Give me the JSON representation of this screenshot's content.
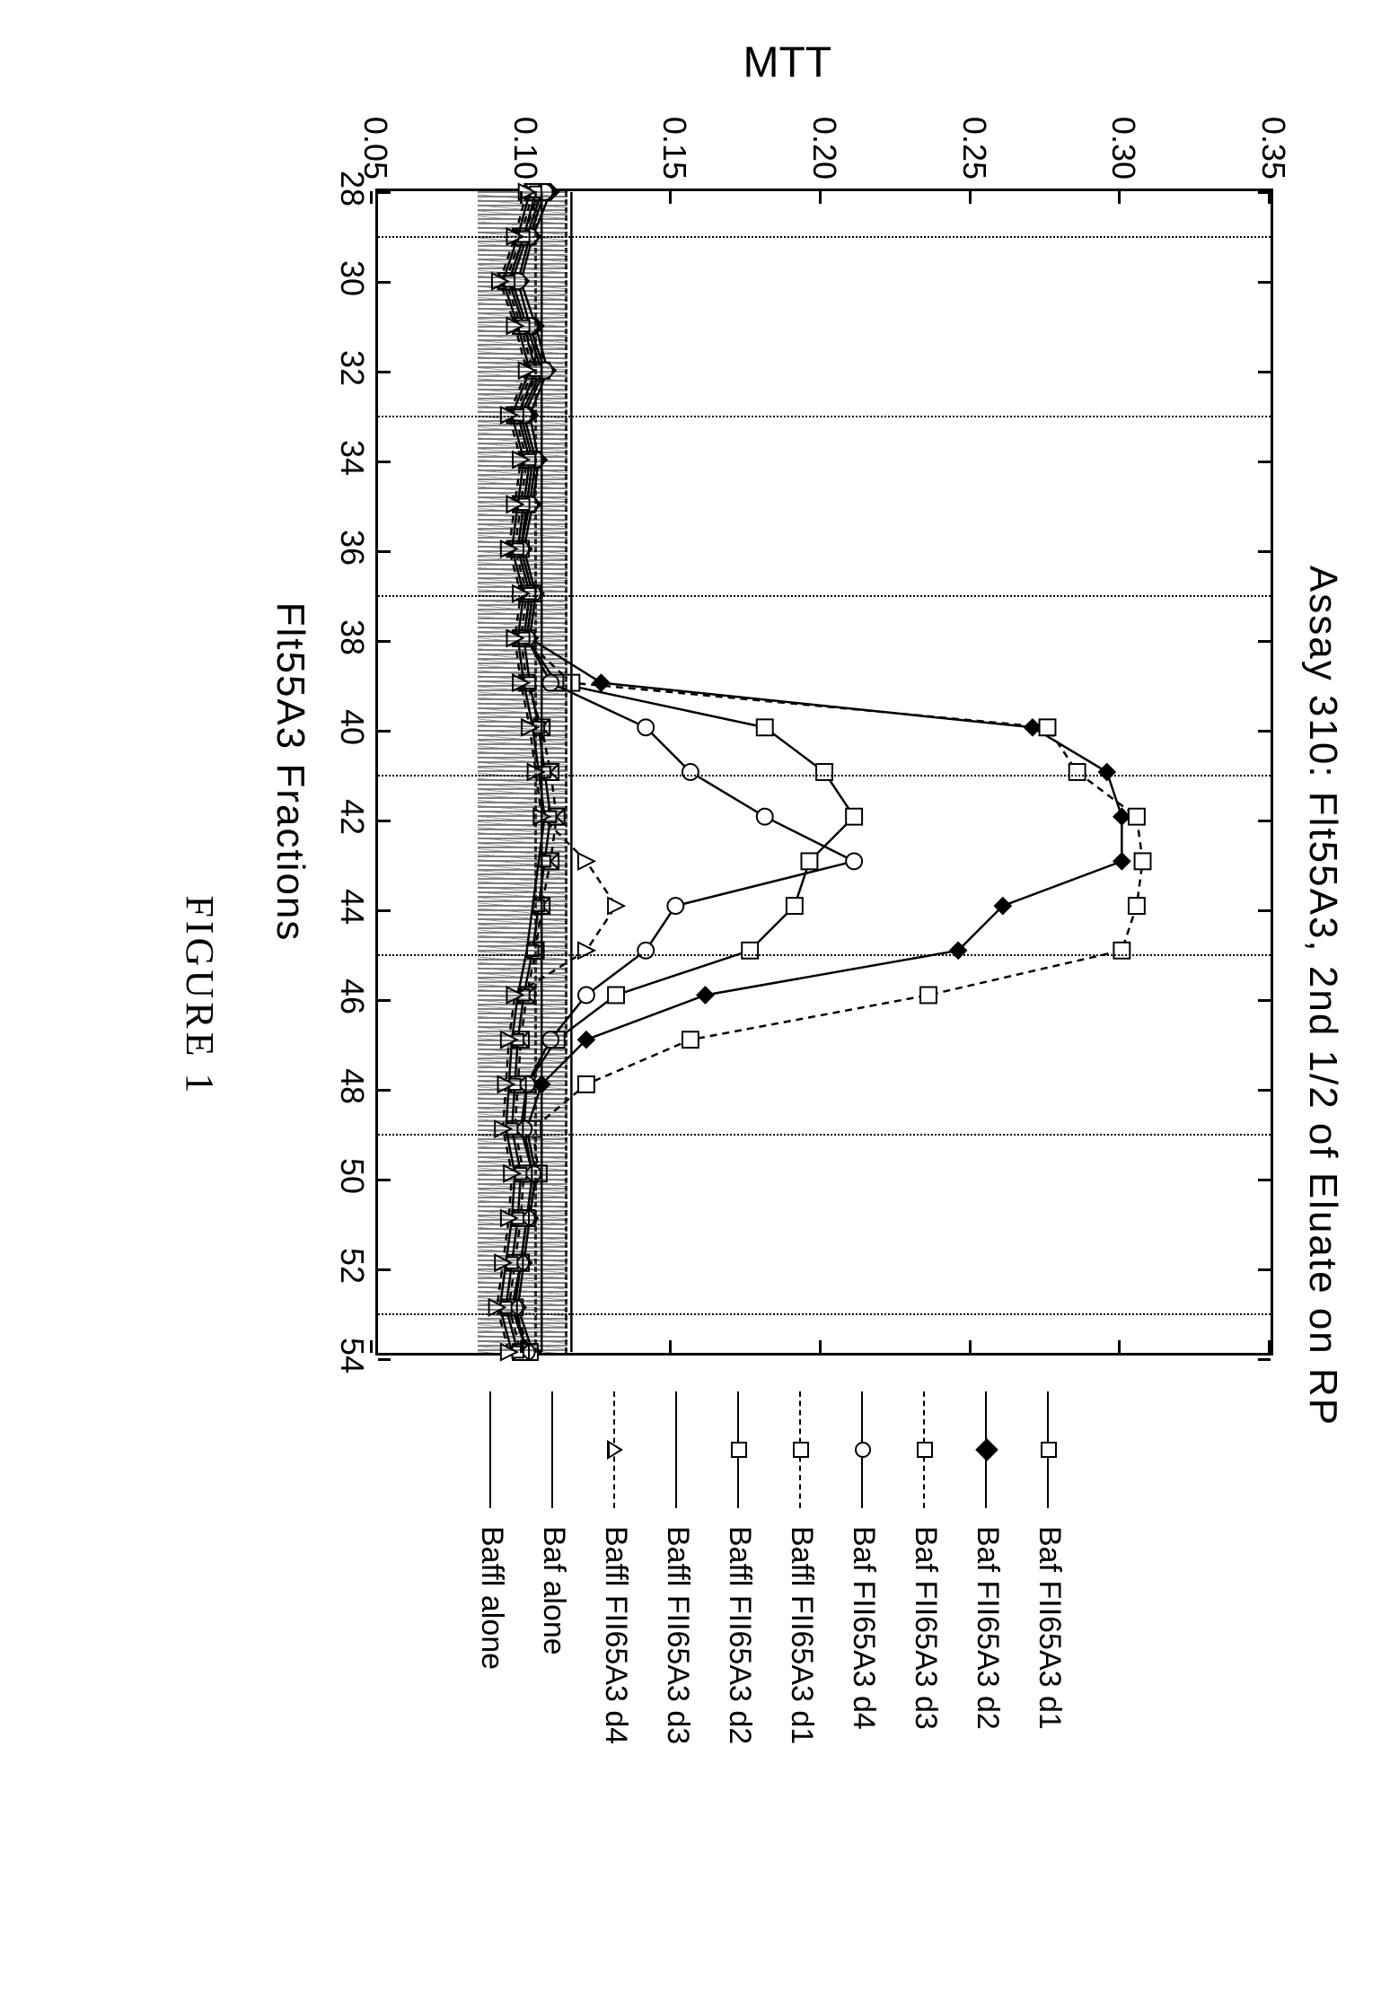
{
  "chart": {
    "type": "line",
    "title": "Assay 310:  Flt55A3, 2nd 1/2 of Eluate on RP",
    "title_fontsize": 44,
    "xlabel": "Flt55A3 Fractions",
    "ylabel": "MTT",
    "label_fontsize": 44,
    "tick_fontsize": 36,
    "background_color": "#ffffff",
    "grid_color": "#000000",
    "grid_style": "dotted",
    "xlim": [
      28,
      54
    ],
    "ylim": [
      0.05,
      0.35
    ],
    "xticks": [
      28,
      30,
      32,
      34,
      36,
      38,
      40,
      42,
      44,
      46,
      48,
      50,
      52,
      54
    ],
    "yticks": [
      0.05,
      0.1,
      0.15,
      0.2,
      0.25,
      0.3,
      0.35
    ],
    "vgrid_at": [
      29,
      33,
      37,
      41,
      45,
      49,
      53,
      55
    ],
    "reference_lines_y": [
      0.105,
      0.115
    ],
    "noise_band_y": [
      0.085,
      0.115
    ],
    "series": [
      {
        "name": "Baf FII65A3 d1",
        "marker": "square",
        "dash": "solid",
        "x": [
          28,
          29,
          30,
          31,
          32,
          33,
          34,
          35,
          36,
          37,
          38,
          39,
          40,
          41,
          42,
          43,
          44,
          45,
          46,
          47,
          48,
          49,
          50,
          51,
          52,
          53,
          54
        ],
        "y": [
          0.105,
          0.1,
          0.095,
          0.1,
          0.105,
          0.098,
          0.102,
          0.1,
          0.098,
          0.102,
          0.1,
          0.11,
          0.18,
          0.2,
          0.21,
          0.195,
          0.19,
          0.175,
          0.13,
          0.11,
          0.1,
          0.098,
          0.102,
          0.1,
          0.098,
          0.095,
          0.1
        ]
      },
      {
        "name": "Baf FII65A3 d2",
        "marker": "diamond-filled",
        "dash": "solid",
        "x": [
          28,
          29,
          30,
          31,
          32,
          33,
          34,
          35,
          36,
          37,
          38,
          39,
          40,
          41,
          42,
          43,
          44,
          45,
          46,
          47,
          48,
          49,
          50,
          51,
          52,
          53,
          54
        ],
        "y": [
          0.108,
          0.102,
          0.098,
          0.103,
          0.107,
          0.101,
          0.104,
          0.102,
          0.099,
          0.103,
          0.101,
          0.125,
          0.27,
          0.295,
          0.3,
          0.3,
          0.26,
          0.245,
          0.16,
          0.12,
          0.105,
          0.1,
          0.103,
          0.101,
          0.099,
          0.097,
          0.102
        ]
      },
      {
        "name": "Baf FII65A3 d3",
        "marker": "square-open",
        "dash": "dashed",
        "x": [
          28,
          29,
          30,
          31,
          32,
          33,
          34,
          35,
          36,
          37,
          38,
          39,
          40,
          41,
          42,
          43,
          44,
          45,
          46,
          47,
          48,
          49,
          50,
          51,
          52,
          53,
          54
        ],
        "y": [
          0.104,
          0.099,
          0.094,
          0.099,
          0.104,
          0.097,
          0.101,
          0.099,
          0.097,
          0.101,
          0.099,
          0.115,
          0.275,
          0.285,
          0.305,
          0.307,
          0.305,
          0.3,
          0.235,
          0.155,
          0.12,
          0.102,
          0.104,
          0.1,
          0.098,
          0.096,
          0.101
        ]
      },
      {
        "name": "Baf FII65A3 d4",
        "marker": "circle",
        "dash": "solid",
        "x": [
          28,
          29,
          30,
          31,
          32,
          33,
          34,
          35,
          36,
          37,
          38,
          39,
          40,
          41,
          42,
          43,
          44,
          45,
          46,
          47,
          48,
          49,
          50,
          51,
          52,
          53,
          54
        ],
        "y": [
          0.106,
          0.101,
          0.097,
          0.101,
          0.106,
          0.099,
          0.103,
          0.101,
          0.098,
          0.102,
          0.1,
          0.108,
          0.14,
          0.155,
          0.18,
          0.21,
          0.15,
          0.14,
          0.12,
          0.108,
          0.1,
          0.099,
          0.102,
          0.1,
          0.098,
          0.096,
          0.1
        ]
      },
      {
        "name": "Baffl FII65A3 d1",
        "marker": "square-x",
        "dash": "dashed",
        "x": [
          28,
          29,
          30,
          31,
          32,
          33,
          34,
          35,
          36,
          37,
          38,
          39,
          40,
          41,
          42,
          43,
          44,
          45,
          46,
          47,
          48,
          49,
          50,
          51,
          52,
          53,
          54
        ],
        "y": [
          0.102,
          0.098,
          0.093,
          0.098,
          0.102,
          0.096,
          0.1,
          0.098,
          0.096,
          0.1,
          0.098,
          0.1,
          0.105,
          0.108,
          0.11,
          0.108,
          0.105,
          0.103,
          0.1,
          0.098,
          0.097,
          0.096,
          0.099,
          0.098,
          0.096,
          0.094,
          0.098
        ]
      },
      {
        "name": "Baffl FII65A3 d2",
        "marker": "square-small",
        "dash": "solid",
        "x": [
          28,
          29,
          30,
          31,
          32,
          33,
          34,
          35,
          36,
          37,
          38,
          39,
          40,
          41,
          42,
          43,
          44,
          45,
          46,
          47,
          48,
          49,
          50,
          51,
          52,
          53,
          54
        ],
        "y": [
          0.103,
          0.099,
          0.094,
          0.099,
          0.103,
          0.097,
          0.101,
          0.099,
          0.097,
          0.101,
          0.099,
          0.101,
          0.104,
          0.106,
          0.108,
          0.106,
          0.104,
          0.102,
          0.099,
          0.097,
          0.096,
          0.095,
          0.098,
          0.097,
          0.095,
          0.093,
          0.097
        ]
      },
      {
        "name": "Baffl FII65A3 d3",
        "marker": "none",
        "dash": "solid",
        "x": [
          28,
          29,
          30,
          31,
          32,
          33,
          34,
          35,
          36,
          37,
          38,
          39,
          40,
          41,
          42,
          43,
          44,
          45,
          46,
          47,
          48,
          49,
          50,
          51,
          52,
          53,
          54
        ],
        "y": [
          0.101,
          0.097,
          0.092,
          0.097,
          0.101,
          0.095,
          0.099,
          0.097,
          0.095,
          0.099,
          0.097,
          0.099,
          0.102,
          0.104,
          0.106,
          0.104,
          0.102,
          0.1,
          0.097,
          0.095,
          0.094,
          0.093,
          0.096,
          0.095,
          0.093,
          0.091,
          0.095
        ]
      },
      {
        "name": "Baffl FII65A3 d4",
        "marker": "triangle-open",
        "dash": "dashed",
        "x": [
          28,
          29,
          30,
          31,
          32,
          33,
          34,
          35,
          36,
          37,
          38,
          39,
          40,
          41,
          42,
          43,
          44,
          45,
          46,
          47,
          48,
          49,
          50,
          51,
          52,
          53,
          54
        ],
        "y": [
          0.1,
          0.096,
          0.091,
          0.096,
          0.1,
          0.094,
          0.098,
          0.096,
          0.094,
          0.098,
          0.096,
          0.098,
          0.101,
          0.103,
          0.105,
          0.12,
          0.13,
          0.12,
          0.096,
          0.094,
          0.093,
          0.092,
          0.095,
          0.094,
          0.092,
          0.09,
          0.094
        ]
      },
      {
        "name": "Baf alone",
        "marker": "none",
        "dash": "solid",
        "x": [
          28,
          54
        ],
        "y": [
          0.115,
          0.115
        ]
      },
      {
        "name": "Baffl alone",
        "marker": "none",
        "dash": "solid",
        "x": [
          28,
          54
        ],
        "y": [
          0.105,
          0.105
        ]
      }
    ],
    "legend_fontsize": 34,
    "legend_line_width": 130,
    "figure_caption": "FIGURE 1",
    "colors": {
      "line": "#000000",
      "marker_fill": "#ffffff",
      "marker_stroke": "#000000"
    }
  }
}
